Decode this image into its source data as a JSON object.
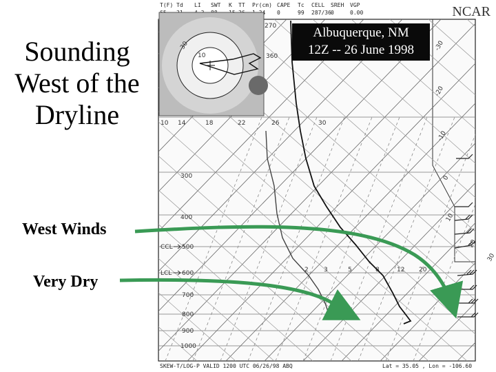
{
  "title_lines": [
    "Sounding",
    "West of the",
    "Dryline"
  ],
  "labels": {
    "west_winds": "West Winds",
    "very_dry": "Very Dry"
  },
  "watermark": "NCAR",
  "location": {
    "line1": "Albuquerque, NM",
    "line2": "12Z -- 26 June 1998"
  },
  "header": {
    "names": [
      "T(F)",
      "Td",
      "LI",
      "SWT",
      "K",
      "TT",
      "Pr(cm)",
      "CAPE",
      "Tc",
      "CELL",
      "SREH",
      "VGP"
    ],
    "values": [
      "65",
      "31",
      "4.3",
      "88",
      "15",
      "36",
      "1.34",
      "0",
      "99",
      "287/36",
      "0",
      "0.00"
    ]
  },
  "footer": {
    "left": "SKEW-T/LOG-P VALID 1200 UTC 06/26/98 ABQ",
    "lat": "Lat =   35.05 , Lon =  -106.60"
  },
  "pressure_levels": [
    "300",
    "400",
    "500",
    "600",
    "700",
    "800",
    "900",
    "1000"
  ],
  "parcel_markers": {
    "ccl": "CCL",
    "lcl": "LCL"
  },
  "mixing_ratios": [
    "10",
    "14",
    "18",
    "22",
    "26",
    "30"
  ],
  "mixing_ratios_low": [
    "2",
    "3",
    "5",
    "8",
    "12",
    "20"
  ],
  "hodograph": {
    "ring_labels": [
      "10",
      "30"
    ]
  },
  "isotherms": [
    "-30",
    "-20",
    "-10",
    "0",
    "10",
    "20",
    "30",
    "270",
    "360"
  ],
  "colors": {
    "arrow": "#3a9a55",
    "box": "#0a0a0a"
  }
}
